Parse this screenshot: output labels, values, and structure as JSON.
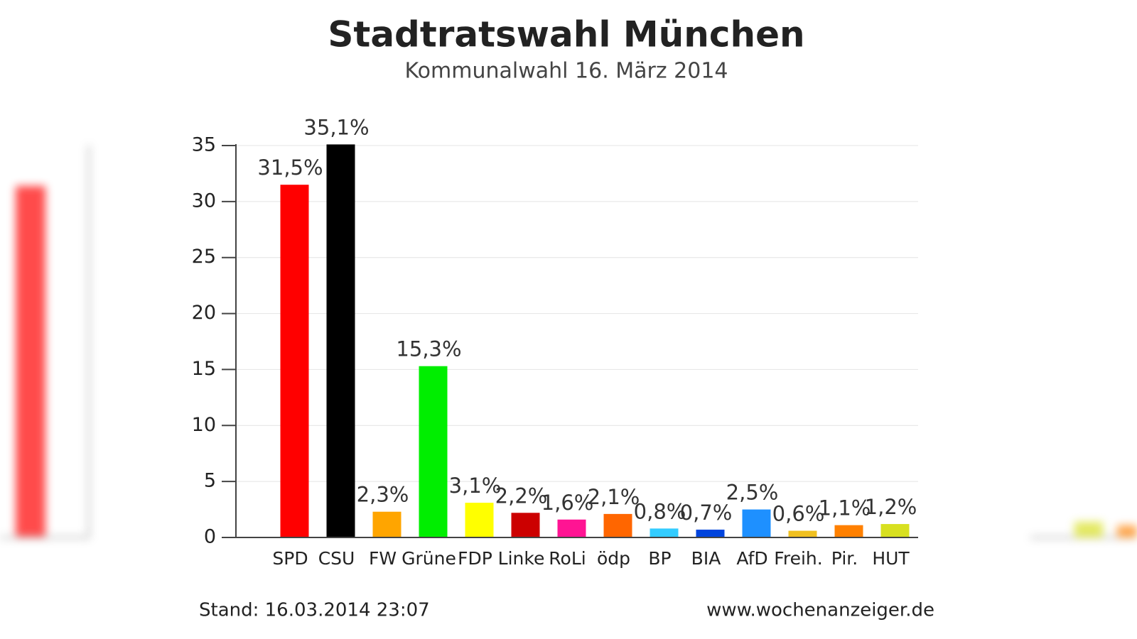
{
  "chart_data": {
    "type": "bar",
    "title": "Stadtratswahl München",
    "subtitle": "Kommunalwahl 16. März 2014",
    "categories": [
      "SPD",
      "CSU",
      "FW",
      "Grüne",
      "FDP",
      "Linke",
      "RoLi",
      "ödp",
      "BP",
      "BIA",
      "AfD",
      "Freih.",
      "Pir.",
      "HUT"
    ],
    "values": [
      31.5,
      35.1,
      2.3,
      15.3,
      3.1,
      2.2,
      1.6,
      2.1,
      0.8,
      0.7,
      2.5,
      0.6,
      1.1,
      1.2
    ],
    "value_labels": [
      "31,5%",
      "35,1%",
      "2,3%",
      "15,3%",
      "3,1%",
      "2,2%",
      "1,6%",
      "2,1%",
      "0,8%",
      "0,7%",
      "2,5%",
      "0,6%",
      "1,1%",
      "1,2%"
    ],
    "colors": [
      "#ff0000",
      "#000000",
      "#ffa500",
      "#00ee00",
      "#ffff00",
      "#cc0000",
      "#ff1493",
      "#ff6600",
      "#33ccff",
      "#0044dd",
      "#1e90ff",
      "#f0c020",
      "#ff8000",
      "#d8e020"
    ],
    "ylim": [
      0,
      35
    ],
    "yticks": [
      0,
      5,
      10,
      15,
      20,
      25,
      30,
      35
    ],
    "grid": true,
    "footer_left": "Stand: 16.03.2014 23:07",
    "footer_right": "www.wochenanzeiger.de"
  }
}
